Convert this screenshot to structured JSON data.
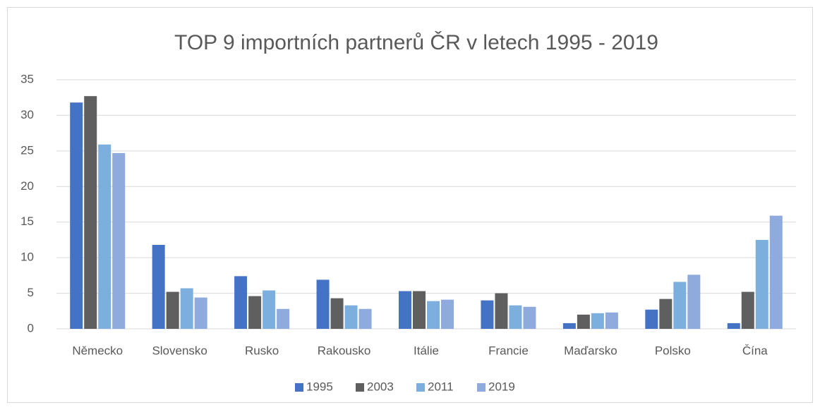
{
  "chart_data": {
    "type": "bar",
    "title": "TOP 9 importních partnerů ČR v letech 1995 - 2019",
    "categories": [
      "Německo",
      "Slovensko",
      "Rusko",
      "Rakousko",
      "Itálie",
      "Francie",
      "Maďarsko",
      "Polsko",
      "Čína"
    ],
    "series": [
      {
        "name": "1995",
        "color": "#4472c4",
        "values": [
          31.8,
          11.8,
          7.4,
          6.9,
          5.3,
          4.0,
          0.8,
          2.7,
          0.8
        ]
      },
      {
        "name": "2003",
        "color": "#5f5f5f",
        "values": [
          32.7,
          5.2,
          4.6,
          4.3,
          5.3,
          5.0,
          2.0,
          4.2,
          5.2
        ]
      },
      {
        "name": "2011",
        "color": "#7cafdd",
        "values": [
          25.9,
          5.7,
          5.4,
          3.3,
          3.9,
          3.3,
          2.2,
          6.6,
          12.5
        ]
      },
      {
        "name": "2019",
        "color": "#8faadc",
        "values": [
          24.7,
          4.4,
          2.8,
          2.8,
          4.1,
          3.1,
          2.3,
          7.6,
          15.9
        ]
      }
    ],
    "ylim": [
      0,
      35
    ],
    "yticks": [
      0,
      5,
      10,
      15,
      20,
      25,
      30,
      35
    ],
    "grid": true,
    "legend": "bottom"
  }
}
